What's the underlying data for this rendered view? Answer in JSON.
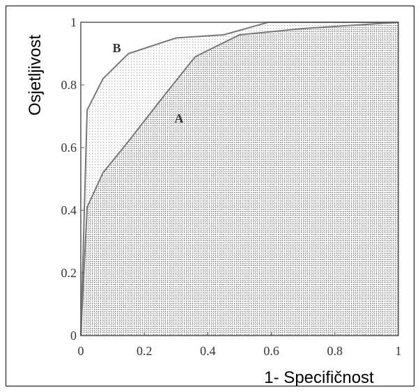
{
  "chart_data": {
    "type": "area",
    "xlabel": "1- Specifičnost",
    "ylabel": "Osjetljivost",
    "xlim": [
      0,
      1
    ],
    "ylim": [
      0,
      1
    ],
    "x_ticks": [
      "0",
      "0.2",
      "0.4",
      "0.6",
      "0.8",
      "1"
    ],
    "y_ticks": [
      "0",
      "0.2",
      "0.4",
      "0.6",
      "0.8",
      "1"
    ],
    "grid": false,
    "legend": "none",
    "series": [
      {
        "name": "A",
        "x": [
          0,
          0.02,
          0.07,
          0.15,
          0.25,
          0.36,
          0.5,
          0.7,
          1.0
        ],
        "y": [
          0,
          0.41,
          0.52,
          0.62,
          0.75,
          0.89,
          0.96,
          0.98,
          1.0
        ]
      },
      {
        "name": "B",
        "x": [
          0,
          0.02,
          0.07,
          0.15,
          0.3,
          0.45,
          0.59,
          1.0
        ],
        "y": [
          0,
          0.72,
          0.82,
          0.9,
          0.95,
          0.96,
          1.0,
          1.0
        ]
      }
    ],
    "colors": {
      "curve": "#777777",
      "dots_light": "#aaaaaa",
      "dots_dark": "#777777",
      "frame": "#555555"
    }
  }
}
